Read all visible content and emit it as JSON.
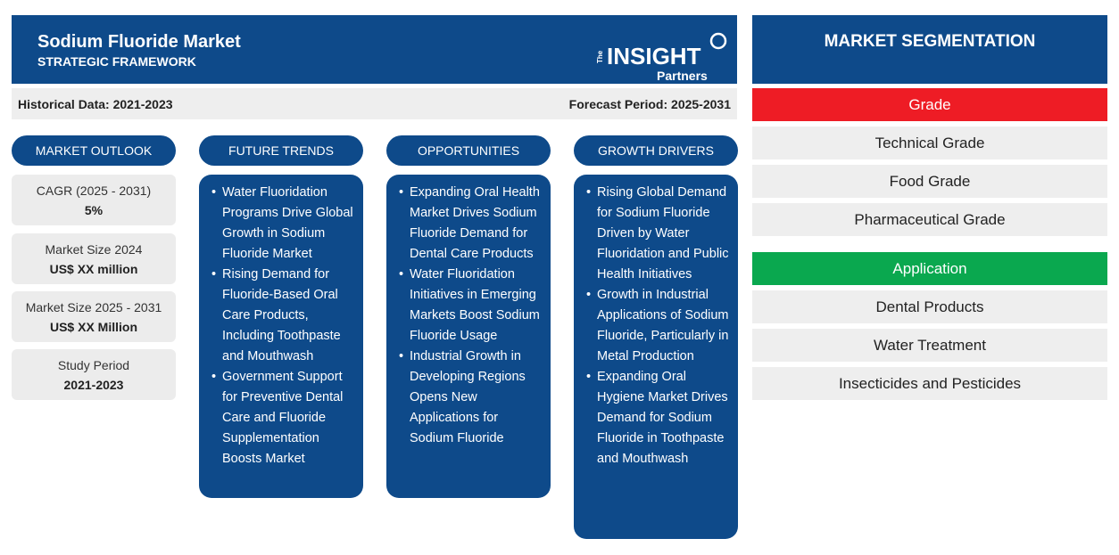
{
  "header": {
    "title": "Sodium Fluoride Market",
    "subtitle": "STRATEGIC FRAMEWORK",
    "logo": {
      "small": "The",
      "big": "INSIGHT",
      "partners": "Partners"
    }
  },
  "periods": {
    "historical": "Historical Data: 2021-2023",
    "forecast": "Forecast Period: 2025-2031"
  },
  "columns": {
    "outlook": "MARKET OUTLOOK",
    "trends": "FUTURE TRENDS",
    "opportunities": "OPPORTUNITIES",
    "drivers": "GROWTH DRIVERS"
  },
  "outlook": [
    {
      "label": "CAGR (2025 - 2031)",
      "value": "5%"
    },
    {
      "label": "Market Size 2024",
      "value": "US$ XX million"
    },
    {
      "label": "Market Size 2025 - 2031",
      "value": "US$ XX Million"
    },
    {
      "label": "Study Period",
      "value": "2021-2023"
    }
  ],
  "trends": [
    "Water Fluoridation Programs Drive Global Growth in Sodium Fluoride Market",
    "Rising Demand for Fluoride-Based Oral Care Products, Including Toothpaste and Mouthwash",
    "Government Support for Preventive Dental Care and Fluoride Supplementation Boosts Market"
  ],
  "opportunities": [
    "Expanding Oral Health Market Drives Sodium Fluoride Demand for Dental Care Products",
    "Water Fluoridation Initiatives in Emerging Markets Boost Sodium Fluoride Usage",
    "Industrial Growth in Developing Regions Opens New Applications for Sodium Fluoride"
  ],
  "drivers": [
    "Rising Global Demand for Sodium Fluoride Driven by Water Fluoridation and Public Health Initiatives",
    "Growth in Industrial Applications of Sodium Fluoride, Particularly in Metal Production",
    "Expanding Oral Hygiene Market Drives Demand for Sodium Fluoride in Toothpaste and Mouthwash"
  ],
  "segmentation": {
    "title": "MARKET SEGMENTATION",
    "grade": {
      "label": "Grade",
      "color": "#ee1c25",
      "items": [
        "Technical Grade",
        "Food Grade",
        "Pharmaceutical Grade"
      ]
    },
    "application": {
      "label": "Application",
      "color": "#0aa84f",
      "items": [
        "Dental Products",
        "Water Treatment",
        "Insecticides and Pesticides"
      ]
    }
  },
  "colors": {
    "primary": "#0e4a8a",
    "panel": "#eeeeee"
  }
}
